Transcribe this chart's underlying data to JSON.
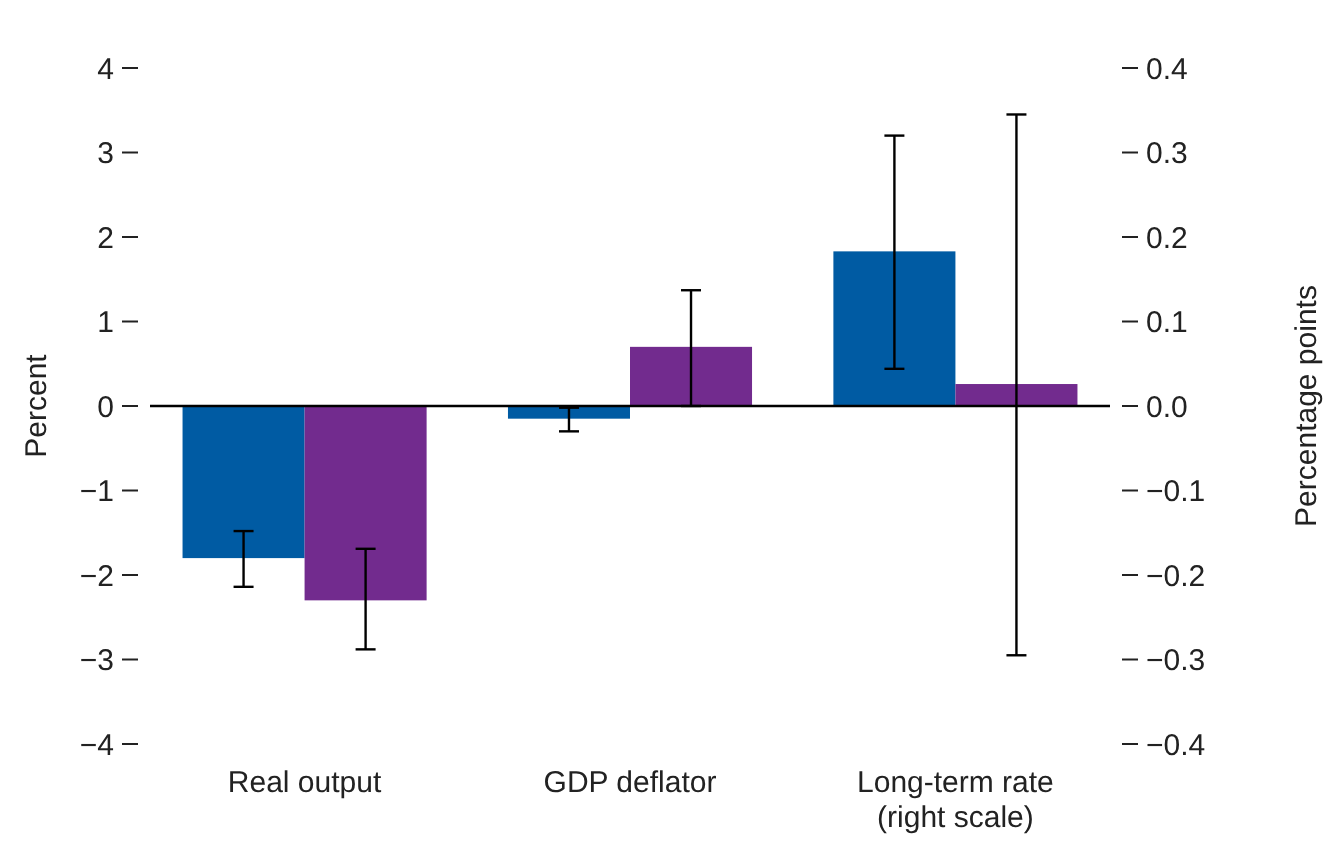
{
  "chart_data": {
    "type": "bar",
    "ylabel": "Percent",
    "y2label": "Percentage points",
    "categories": [
      "Real output",
      "GDP deflator",
      "Long-term rate\n(right scale)"
    ],
    "series": [
      {
        "color": "#005ba3",
        "values": [
          -1.8,
          -0.15,
          null
        ],
        "errors": [
          [
            -2.14,
            -1.48
          ],
          [
            -0.3,
            -0.02
          ],
          null
        ]
      },
      {
        "color": "#722b8e",
        "values": [
          -2.3,
          0.7,
          null
        ],
        "errors": [
          [
            -2.88,
            -1.69
          ],
          [
            0.0,
            1.37
          ],
          null
        ]
      },
      {
        "color": "#005ba3",
        "axis": "y2",
        "values": [
          null,
          null,
          0.183
        ],
        "errors": [
          null,
          null,
          [
            0.044,
            0.32
          ]
        ]
      },
      {
        "color": "#722b8e",
        "axis": "y2",
        "values": [
          null,
          null,
          0.026
        ],
        "errors": [
          null,
          null,
          [
            -0.295,
            0.345
          ]
        ]
      }
    ],
    "ylim": [
      -4,
      4
    ],
    "yticks": [
      {
        "value": -4,
        "label": "−4"
      },
      {
        "value": -3,
        "label": "−3"
      },
      {
        "value": -2,
        "label": "−2"
      },
      {
        "value": -1,
        "label": "−1"
      },
      0,
      1,
      2,
      3,
      4
    ],
    "y2lim": [
      -0.4,
      0.4
    ],
    "y2ticks": [
      {
        "value": -0.4,
        "label": "−0.4"
      },
      {
        "value": -0.3,
        "label": "−0.3"
      },
      {
        "value": -0.2,
        "label": "−0.2"
      },
      {
        "value": -0.1,
        "label": "−0.1"
      },
      {
        "value": 0,
        "label": "0.0"
      },
      0.1,
      0.2,
      0.3,
      0.4
    ]
  }
}
